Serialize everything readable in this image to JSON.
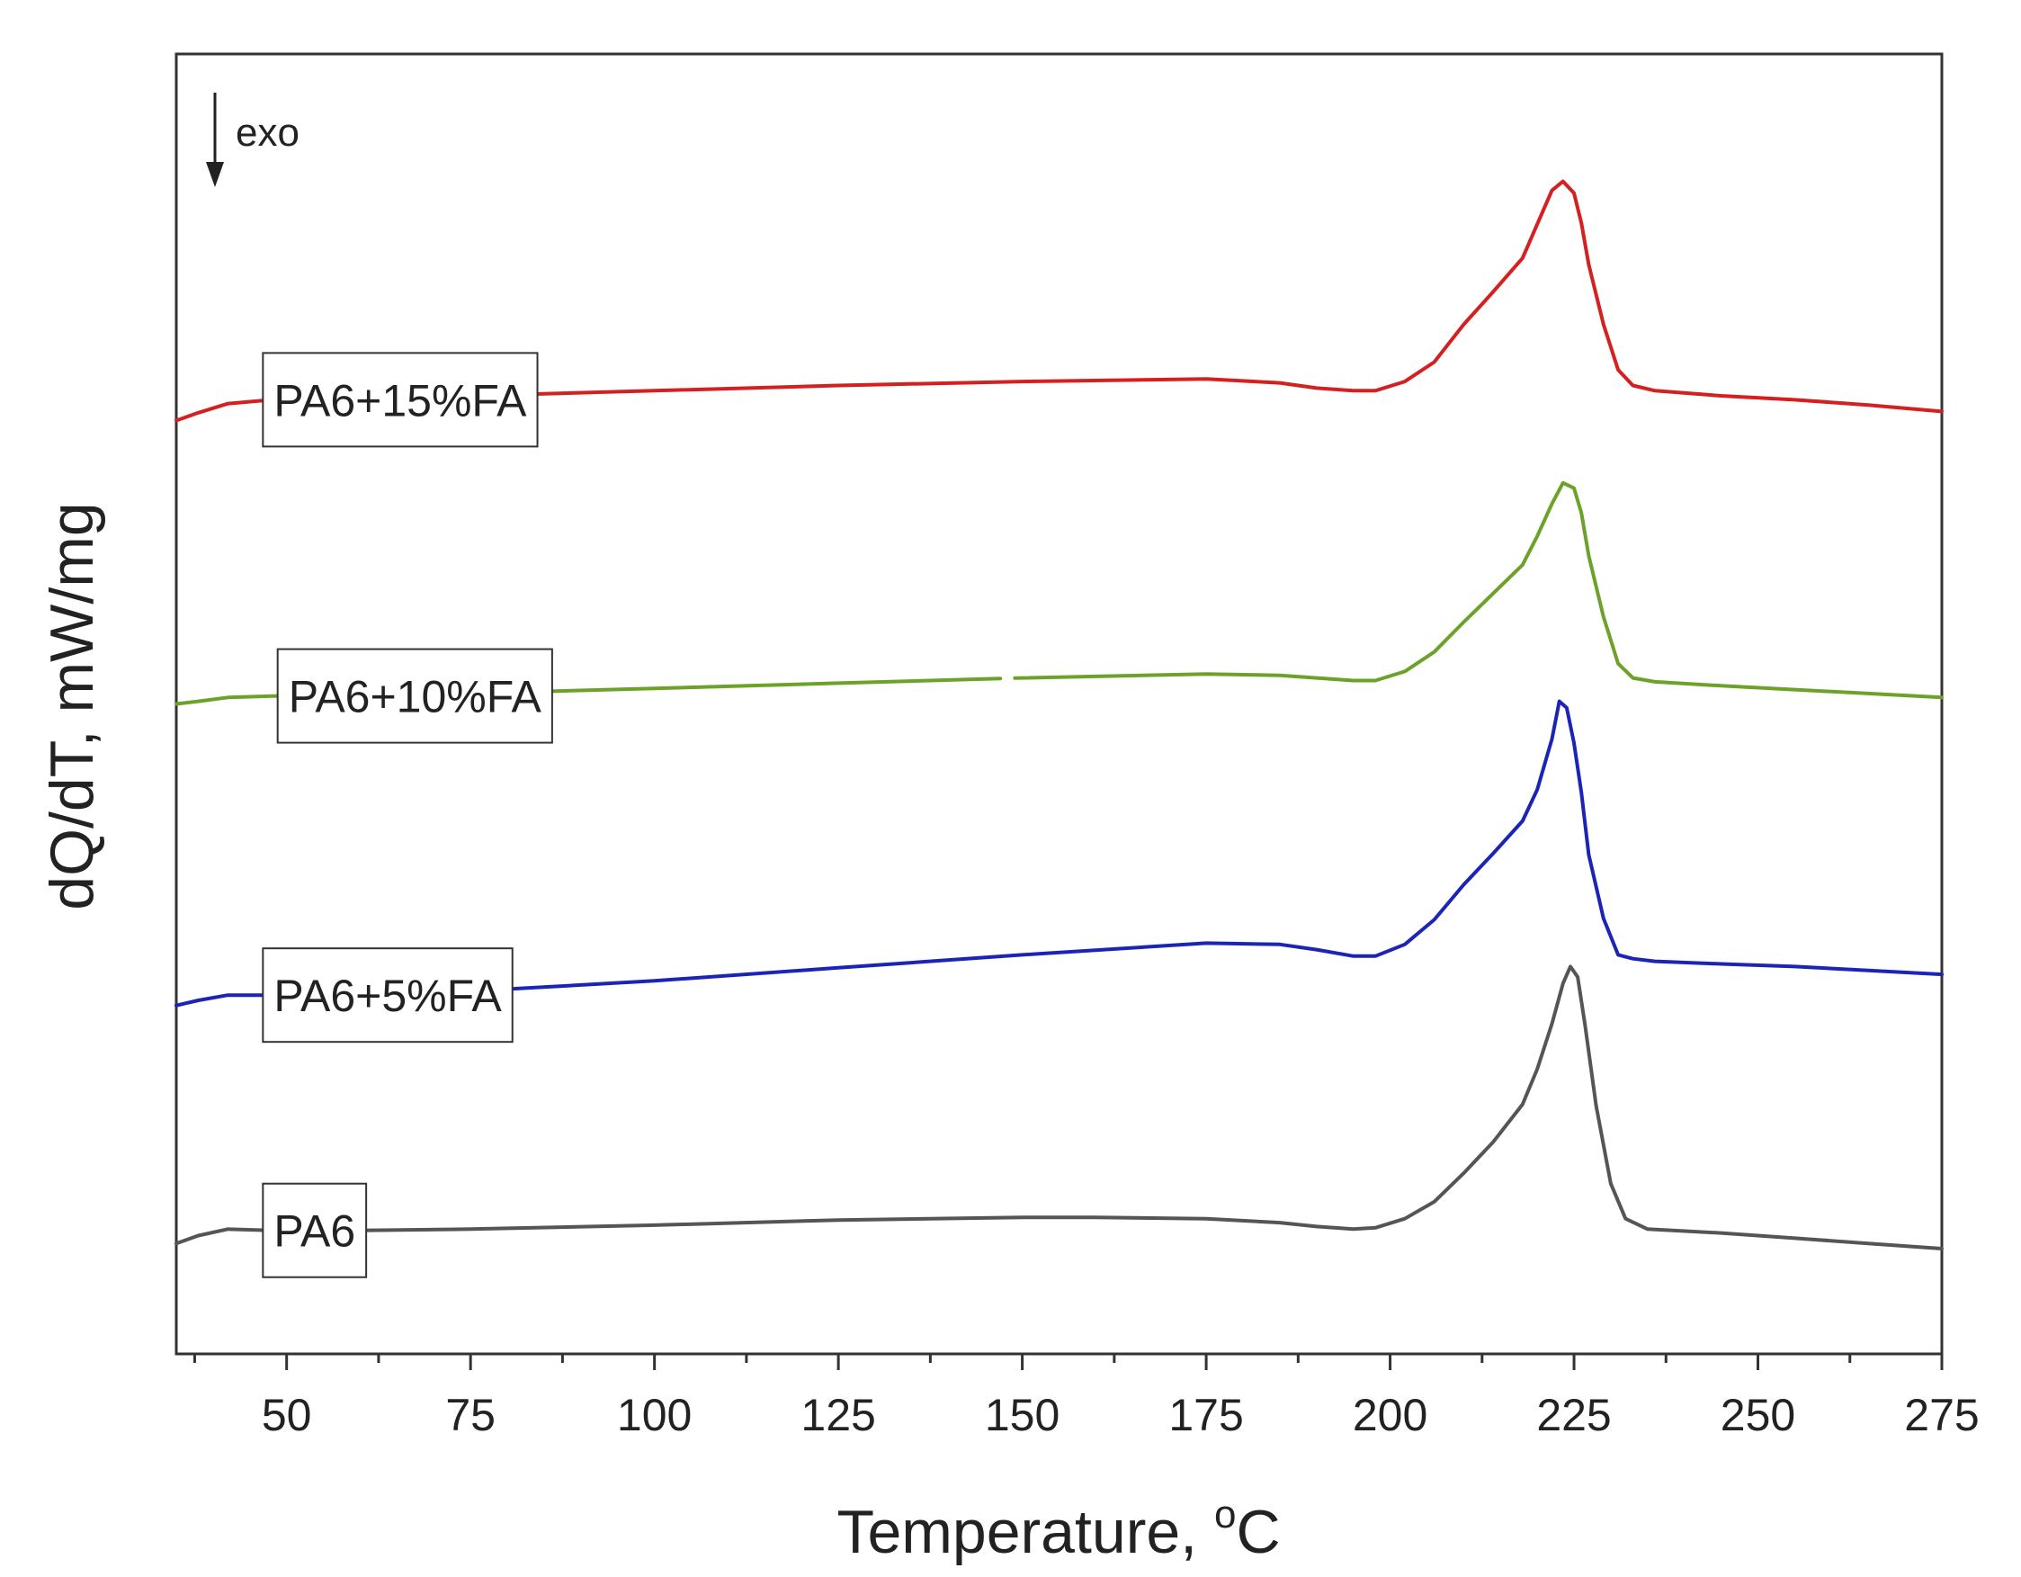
{
  "chart_data": {
    "type": "line",
    "title": "",
    "xlabel_main": "Temperature, ",
    "xlabel_sup": "o",
    "xlabel_unit": "C",
    "ylabel": "dQ/dT, mW/mg",
    "xlim": [
      35,
      275
    ],
    "ylim": [
      0,
      1000
    ],
    "x_ticks": [
      50,
      75,
      100,
      125,
      150,
      175,
      200,
      225,
      250,
      275
    ],
    "x_minor_step": 12.5,
    "y_ticks_visible": false,
    "grid": false,
    "annotation": "exo",
    "series": [
      {
        "name": "PA6+15%FA",
        "color": "#d42020",
        "label_x": 48,
        "gap": null,
        "points": [
          [
            35,
            718
          ],
          [
            38,
            724
          ],
          [
            42,
            731
          ],
          [
            48,
            734
          ],
          [
            60,
            735
          ],
          [
            75,
            737
          ],
          [
            100,
            741
          ],
          [
            125,
            745
          ],
          [
            150,
            748
          ],
          [
            175,
            750
          ],
          [
            185,
            747
          ],
          [
            190,
            743
          ],
          [
            195,
            741
          ],
          [
            198,
            741
          ],
          [
            202,
            748
          ],
          [
            206,
            763
          ],
          [
            210,
            792
          ],
          [
            214,
            817
          ],
          [
            218,
            843
          ],
          [
            220,
            869
          ],
          [
            222,
            895
          ],
          [
            223.5,
            902
          ],
          [
            225,
            893
          ],
          [
            226,
            870
          ],
          [
            227,
            838
          ],
          [
            229,
            792
          ],
          [
            231,
            757
          ],
          [
            233,
            745
          ],
          [
            236,
            741
          ],
          [
            245,
            737
          ],
          [
            255,
            734
          ],
          [
            265,
            730
          ],
          [
            275,
            725
          ]
        ]
      },
      {
        "name": "PA6+10%FA",
        "color": "#6ca22a",
        "label_x": 50,
        "gap": [
          147,
          149
        ],
        "points": [
          [
            35,
            500
          ],
          [
            38,
            502
          ],
          [
            42,
            505
          ],
          [
            48,
            506
          ],
          [
            60,
            507
          ],
          [
            75,
            508
          ],
          [
            100,
            512
          ],
          [
            125,
            516
          ],
          [
            150,
            520
          ],
          [
            175,
            523
          ],
          [
            185,
            522
          ],
          [
            190,
            520
          ],
          [
            195,
            518
          ],
          [
            198,
            518
          ],
          [
            202,
            525
          ],
          [
            206,
            540
          ],
          [
            210,
            563
          ],
          [
            214,
            585
          ],
          [
            218,
            607
          ],
          [
            220,
            629
          ],
          [
            222,
            654
          ],
          [
            223.5,
            670
          ],
          [
            225,
            666
          ],
          [
            226,
            647
          ],
          [
            227,
            614
          ],
          [
            229,
            567
          ],
          [
            231,
            531
          ],
          [
            233,
            520
          ],
          [
            236,
            517
          ],
          [
            245,
            514
          ],
          [
            255,
            511
          ],
          [
            265,
            508
          ],
          [
            275,
            505
          ]
        ]
      },
      {
        "name": "PA6+5%FA",
        "color": "#1c24b8",
        "label_x": 48,
        "gap": null,
        "points": [
          [
            35,
            268
          ],
          [
            38,
            272
          ],
          [
            42,
            276
          ],
          [
            48,
            276
          ],
          [
            60,
            277
          ],
          [
            75,
            279
          ],
          [
            100,
            287
          ],
          [
            125,
            297
          ],
          [
            150,
            307
          ],
          [
            175,
            316
          ],
          [
            185,
            315
          ],
          [
            190,
            311
          ],
          [
            195,
            306
          ],
          [
            198,
            306
          ],
          [
            202,
            315
          ],
          [
            206,
            334
          ],
          [
            210,
            361
          ],
          [
            214,
            385
          ],
          [
            218,
            410
          ],
          [
            220,
            434
          ],
          [
            222,
            473
          ],
          [
            223,
            502
          ],
          [
            224,
            497
          ],
          [
            225,
            470
          ],
          [
            226,
            432
          ],
          [
            227,
            384
          ],
          [
            229,
            335
          ],
          [
            231,
            307
          ],
          [
            233,
            304
          ],
          [
            236,
            302
          ],
          [
            245,
            300
          ],
          [
            255,
            298
          ],
          [
            265,
            295
          ],
          [
            275,
            292
          ]
        ]
      },
      {
        "name": "PA6",
        "color": "#555555",
        "label_x": 48,
        "gap": null,
        "points": [
          [
            35,
            85
          ],
          [
            38,
            91
          ],
          [
            42,
            96
          ],
          [
            48,
            95
          ],
          [
            60,
            95
          ],
          [
            75,
            96
          ],
          [
            100,
            99
          ],
          [
            125,
            103
          ],
          [
            150,
            105
          ],
          [
            160,
            105
          ],
          [
            175,
            104
          ],
          [
            185,
            101
          ],
          [
            190,
            98
          ],
          [
            195,
            96
          ],
          [
            198,
            97
          ],
          [
            202,
            104
          ],
          [
            206,
            117
          ],
          [
            210,
            139
          ],
          [
            214,
            163
          ],
          [
            218,
            192
          ],
          [
            220,
            219
          ],
          [
            222,
            254
          ],
          [
            223.5,
            285
          ],
          [
            224.5,
            298
          ],
          [
            225.5,
            290
          ],
          [
            226.5,
            253
          ],
          [
            228,
            191
          ],
          [
            230,
            131
          ],
          [
            232,
            104
          ],
          [
            235,
            96
          ],
          [
            245,
            93
          ],
          [
            255,
            89
          ],
          [
            265,
            85
          ],
          [
            275,
            81
          ]
        ]
      }
    ]
  }
}
